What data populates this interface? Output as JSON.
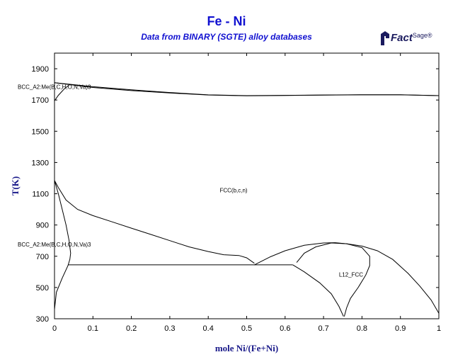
{
  "title": "Fe - Ni",
  "subtitle": "Data from BINARY (SGTE) alloy databases",
  "logo": {
    "main": "Fact",
    "sup": "Sage",
    "mark": "®",
    "icon": "factsage-logo-icon"
  },
  "colors": {
    "title": "#1010d0",
    "axis_label": "#1a1a8a",
    "lines": "#000000"
  },
  "chart_data": {
    "type": "line",
    "title": "Fe - Ni",
    "subtitle": "Data from BINARY (SGTE) alloy databases",
    "xlabel": "mole Ni/(Fe+Ni)",
    "ylabel": "T(K)",
    "xlim": [
      0,
      1
    ],
    "ylim": [
      300,
      2000
    ],
    "xticks": [
      0,
      0.1,
      0.2,
      0.3,
      0.4,
      0.5,
      0.6,
      0.7,
      0.8,
      0.9,
      1
    ],
    "xtick_labels": [
      "0",
      "0.1",
      "0.2",
      "0.3",
      "0.4",
      "0.5",
      "0.6",
      "0.7",
      "0.8",
      "0.9",
      "1"
    ],
    "yticks": [
      300,
      500,
      700,
      900,
      1100,
      1300,
      1500,
      1700,
      1900
    ],
    "ytick_labels": [
      "300",
      "500",
      "700",
      "900",
      "1100",
      "1300",
      "1500",
      "1700",
      "1900"
    ],
    "grid": false,
    "phase_labels": [
      {
        "text": "BCC_A2:Me(B,C,H,O,N,Va)3",
        "x": 0.0,
        "y": 1770
      },
      {
        "text": "FCC(b,c,n)",
        "x": 0.43,
        "y": 1110
      },
      {
        "text": "BCC_A2:Me(B,C,H,O,N,Va)3",
        "x": 0.0,
        "y": 763
      },
      {
        "text": "L12_FCC",
        "x": 0.74,
        "y": 570
      }
    ],
    "series": [
      {
        "values": [
          [
            0,
            1811
          ],
          [
            0.1,
            1785
          ],
          [
            0.2,
            1765
          ],
          [
            0.3,
            1748
          ],
          [
            0.4,
            1733
          ],
          [
            0.5,
            1728
          ],
          [
            0.6,
            1730
          ],
          [
            0.7,
            1732
          ],
          [
            0.8,
            1734
          ],
          [
            0.9,
            1734
          ],
          [
            1,
            1728
          ]
        ]
      },
      {
        "values": [
          [
            0,
            1811
          ],
          [
            0.1,
            1780
          ],
          [
            0.2,
            1760
          ],
          [
            0.3,
            1745
          ],
          [
            0.4,
            1732
          ],
          [
            0.5,
            1727
          ],
          [
            0.6,
            1729
          ],
          [
            0.7,
            1731
          ],
          [
            0.8,
            1733
          ],
          [
            0.9,
            1733
          ],
          [
            1,
            1728
          ]
        ]
      },
      {
        "values": [
          [
            0,
            1695
          ],
          [
            0.01,
            1730
          ],
          [
            0.025,
            1770
          ],
          [
            0.04,
            1800
          ]
        ]
      },
      {
        "values": [
          [
            0,
            1185
          ],
          [
            0.01,
            1140
          ],
          [
            0.03,
            1060
          ],
          [
            0.06,
            1000
          ],
          [
            0.1,
            960
          ],
          [
            0.15,
            920
          ],
          [
            0.2,
            880
          ],
          [
            0.25,
            840
          ],
          [
            0.3,
            800
          ],
          [
            0.35,
            760
          ],
          [
            0.4,
            730
          ],
          [
            0.44,
            710
          ],
          [
            0.48,
            705
          ],
          [
            0.5,
            690
          ],
          [
            0.52,
            655
          ]
        ]
      },
      {
        "values": [
          [
            0,
            1185
          ],
          [
            0.01,
            1100
          ],
          [
            0.02,
            1000
          ],
          [
            0.03,
            900
          ],
          [
            0.038,
            800
          ],
          [
            0.042,
            720
          ],
          [
            0.04,
            680
          ],
          [
            0.035,
            640
          ],
          [
            0.02,
            560
          ],
          [
            0.005,
            470
          ],
          [
            0,
            360
          ]
        ]
      },
      {
        "values": [
          [
            0.035,
            645
          ],
          [
            0.62,
            645
          ]
        ]
      },
      {
        "values": [
          [
            0.52,
            645
          ],
          [
            0.56,
            695
          ],
          [
            0.6,
            735
          ],
          [
            0.65,
            770
          ],
          [
            0.7,
            785
          ],
          [
            0.73,
            787
          ],
          [
            0.76,
            780
          ],
          [
            0.8,
            765
          ],
          [
            0.84,
            735
          ],
          [
            0.88,
            680
          ],
          [
            0.92,
            590
          ],
          [
            0.95,
            510
          ],
          [
            0.98,
            420
          ],
          [
            1,
            335
          ]
        ]
      },
      {
        "values": [
          [
            0.62,
            645
          ],
          [
            0.65,
            600
          ],
          [
            0.69,
            530
          ],
          [
            0.72,
            460
          ],
          [
            0.74,
            380
          ],
          [
            0.752,
            315
          ]
        ]
      },
      {
        "values": [
          [
            0.63,
            660
          ],
          [
            0.65,
            720
          ],
          [
            0.68,
            760
          ],
          [
            0.72,
            785
          ],
          [
            0.76,
            780
          ],
          [
            0.8,
            755
          ],
          [
            0.82,
            700
          ],
          [
            0.82,
            640
          ],
          [
            0.81,
            580
          ],
          [
            0.79,
            500
          ],
          [
            0.77,
            430
          ],
          [
            0.76,
            370
          ],
          [
            0.754,
            315
          ]
        ]
      }
    ]
  }
}
